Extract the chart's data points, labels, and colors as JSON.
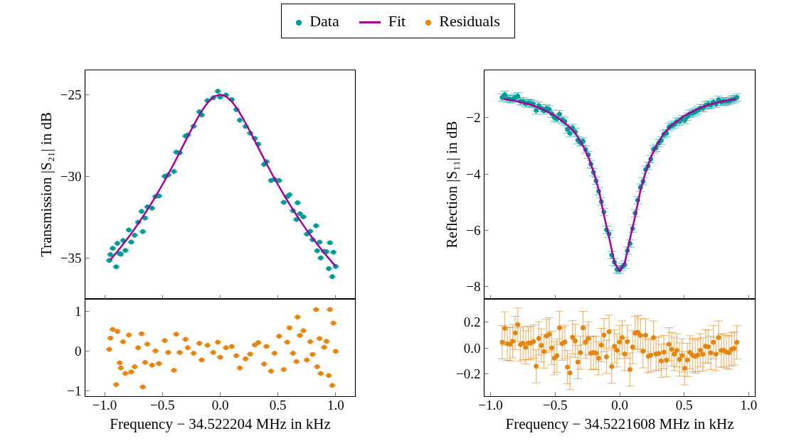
{
  "chart_data": [
    {
      "type": "scatter",
      "legend": "top",
      "ylabel": "Transmission |S₂₁| in dB",
      "tick_labels": "y",
      "xlim": [
        -1.17,
        1.17
      ],
      "ylim": [
        -37.5,
        -23.5
      ],
      "xticks": [
        -1,
        -0.5,
        0,
        0.5,
        1
      ],
      "yticks": [
        {
          "value": -35,
          "label": "−35"
        },
        {
          "value": -30,
          "label": "−30"
        },
        {
          "value": -25,
          "label": "−25"
        }
      ],
      "series": [
        {
          "name": "Data",
          "marker": "circle",
          "color": "#009b95",
          "x": [
            -0.96,
            -0.95,
            -0.93,
            -0.9,
            -0.89,
            -0.87,
            -0.86,
            -0.84,
            -0.82,
            -0.79,
            -0.77,
            -0.74,
            -0.71,
            -0.68,
            -0.67,
            -0.65,
            -0.63,
            -0.59,
            -0.56,
            -0.53,
            -0.48,
            -0.45,
            -0.4,
            -0.38,
            -0.35,
            -0.3,
            -0.28,
            -0.23,
            -0.18,
            -0.16,
            -0.11,
            -0.06,
            -0.02,
            0.0,
            0.05,
            0.1,
            0.14,
            0.17,
            0.22,
            0.26,
            0.3,
            0.33,
            0.38,
            0.4,
            0.44,
            0.47,
            0.51,
            0.55,
            0.58,
            0.6,
            0.63,
            0.66,
            0.67,
            0.69,
            0.72,
            0.75,
            0.78,
            0.8,
            0.83,
            0.84,
            0.86,
            0.87,
            0.9,
            0.92,
            0.94,
            0.95,
            0.97,
            0.98,
            1.0
          ],
          "values": [
            -35.13,
            -34.77,
            -34.39,
            -35.52,
            -34.09,
            -34.71,
            -34.75,
            -33.91,
            -34.52,
            -33.27,
            -34.01,
            -33.59,
            -32.8,
            -32.14,
            -33.37,
            -32.54,
            -31.86,
            -31.94,
            -31.23,
            -31.19,
            -29.99,
            -29.91,
            -29.7,
            -28.52,
            -28.56,
            -27.54,
            -27.47,
            -26.94,
            -26.06,
            -26.25,
            -25.37,
            -25.2,
            -24.8,
            -25.16,
            -25.03,
            -25.31,
            -25.92,
            -26.57,
            -26.95,
            -27.36,
            -27.68,
            -28.03,
            -29.27,
            -29.1,
            -30.25,
            -30.18,
            -30.25,
            -31.58,
            -31.24,
            -31.12,
            -32.09,
            -32.63,
            -31.61,
            -32.28,
            -32.47,
            -33.52,
            -33.35,
            -33.86,
            -33.01,
            -34.54,
            -34.01,
            -34.98,
            -34.58,
            -34.6,
            -35.63,
            -34.05,
            -36.12,
            -34.63,
            -35.5
          ],
          "xerrors": [
            0.025,
            0.025,
            0.025,
            0.025,
            0.025,
            0.025,
            0.025,
            0.025,
            0.025,
            0.025,
            0.025,
            0.025,
            0.025,
            0.025,
            0.025,
            0.025,
            0.025,
            0.025,
            0.025,
            0.025,
            0.025,
            0.025,
            0.025,
            0.025,
            0.025,
            0.025,
            0.025,
            0.025,
            0.025,
            0.025,
            0.025,
            0.025,
            0.025,
            0.025,
            0.025,
            0.025,
            0.025,
            0.025,
            0.025,
            0.025,
            0.025,
            0.025,
            0.025,
            0.025,
            0.025,
            0.025,
            0.025,
            0.025,
            0.025,
            0.025,
            0.025,
            0.025,
            0.025,
            0.025,
            0.025,
            0.025,
            0.025,
            0.025,
            0.025,
            0.025,
            0.025,
            0.025,
            0.025,
            0.025,
            0.025,
            0.025,
            0.025,
            0.025,
            0.025
          ]
        },
        {
          "name": "Fit",
          "type": "line",
          "color": "#a6009f",
          "x": [
            -0.95,
            -0.9,
            -0.85,
            -0.8,
            -0.75,
            -0.7,
            -0.65,
            -0.6,
            -0.55,
            -0.5,
            -0.45,
            -0.4,
            -0.35,
            -0.3,
            -0.25,
            -0.2,
            -0.15,
            -0.1,
            -0.05,
            0,
            0.05,
            0.1,
            0.15,
            0.2,
            0.25,
            0.3,
            0.35,
            0.4,
            0.45,
            0.5,
            0.55,
            0.6,
            0.65,
            0.7,
            0.75,
            0.8,
            0.85,
            0.9,
            0.95,
            1.0
          ],
          "values": [
            -35.09,
            -34.67,
            -34.23,
            -33.77,
            -33.29,
            -32.78,
            -32.25,
            -31.7,
            -31.11,
            -30.5,
            -29.87,
            -29.21,
            -28.52,
            -27.83,
            -27.14,
            -26.49,
            -25.9,
            -25.42,
            -25.11,
            -25.0,
            -25.11,
            -25.42,
            -25.9,
            -26.49,
            -27.14,
            -27.83,
            -28.52,
            -29.21,
            -29.87,
            -30.5,
            -31.11,
            -31.7,
            -32.25,
            -32.78,
            -33.29,
            -33.77,
            -34.23,
            -34.67,
            -35.09,
            -35.49
          ]
        }
      ]
    },
    {
      "type": "scatter",
      "legend": "top",
      "xlabel": "Frequency − 34.522204 MHz in kHz",
      "xlim": [
        -1.17,
        1.17
      ],
      "ylim": [
        -1.15,
        1.3
      ],
      "xticks": [
        {
          "value": -1,
          "label": "−1.0"
        },
        {
          "value": -0.5,
          "label": "−0.5"
        },
        {
          "value": 0,
          "label": "0.0"
        },
        {
          "value": 0.5,
          "label": "0.5"
        },
        {
          "value": 1,
          "label": "1.0"
        }
      ],
      "yticks": [
        {
          "value": -1,
          "label": "−1"
        },
        0,
        1
      ],
      "series": [
        {
          "name": "Residuals",
          "marker": "circle",
          "color": "#e6850e",
          "x": [
            -0.96,
            -0.95,
            -0.93,
            -0.9,
            -0.89,
            -0.87,
            -0.86,
            -0.84,
            -0.82,
            -0.79,
            -0.77,
            -0.74,
            -0.71,
            -0.68,
            -0.67,
            -0.65,
            -0.63,
            -0.59,
            -0.56,
            -0.53,
            -0.48,
            -0.45,
            -0.4,
            -0.38,
            -0.35,
            -0.3,
            -0.28,
            -0.23,
            -0.18,
            -0.16,
            -0.11,
            -0.06,
            -0.02,
            0.0,
            0.05,
            0.1,
            0.14,
            0.17,
            0.22,
            0.26,
            0.3,
            0.33,
            0.38,
            0.4,
            0.44,
            0.47,
            0.51,
            0.55,
            0.58,
            0.6,
            0.63,
            0.66,
            0.67,
            0.69,
            0.72,
            0.75,
            0.78,
            0.8,
            0.83,
            0.84,
            0.86,
            0.87,
            0.9,
            0.92,
            0.94,
            0.95,
            0.97,
            0.98,
            1.0
          ],
          "values": [
            0.04,
            0.32,
            0.54,
            -0.85,
            0.49,
            -0.3,
            -0.43,
            0.23,
            -0.57,
            0.4,
            -0.53,
            -0.4,
            0.08,
            0.43,
            -0.91,
            -0.29,
            0.17,
            -0.36,
            0.0,
            -0.32,
            0.26,
            -0.04,
            -0.49,
            0.42,
            -0.04,
            0.29,
            0.08,
            -0.06,
            0.19,
            -0.23,
            0.14,
            -0.04,
            0.22,
            -0.16,
            0.08,
            0.11,
            -0.12,
            -0.43,
            -0.2,
            -0.08,
            0.15,
            0.21,
            -0.33,
            0.11,
            -0.51,
            -0.06,
            0.37,
            -0.47,
            0.22,
            0.58,
            -0.06,
            -0.27,
            0.85,
            0.39,
            0.51,
            -0.23,
            0.23,
            -0.09,
            1.04,
            -0.4,
            0.31,
            -0.57,
            0.09,
            0.24,
            -0.62,
            1.04,
            -0.87,
            0.7,
            -0.01
          ],
          "xerrors": [
            0.025,
            0.025,
            0.025,
            0.025,
            0.025,
            0.025,
            0.025,
            0.025,
            0.025,
            0.025,
            0.025,
            0.025,
            0.025,
            0.025,
            0.025,
            0.025,
            0.025,
            0.025,
            0.025,
            0.025,
            0.025,
            0.025,
            0.025,
            0.025,
            0.025,
            0.025,
            0.025,
            0.025,
            0.025,
            0.025,
            0.025,
            0.025,
            0.025,
            0.025,
            0.025,
            0.025,
            0.025,
            0.025,
            0.025,
            0.025,
            0.025,
            0.025,
            0.025,
            0.025,
            0.025,
            0.025,
            0.025,
            0.025,
            0.025,
            0.025,
            0.025,
            0.025,
            0.025,
            0.025,
            0.025,
            0.025,
            0.025,
            0.025,
            0.025,
            0.025,
            0.025,
            0.025,
            0.025,
            0.025,
            0.025,
            0.025,
            0.025,
            0.025,
            0.025
          ]
        }
      ]
    },
    {
      "type": "scatter",
      "ylabel": "Reflection |S₁₁| in dB",
      "tick_labels": "y",
      "xlim": [
        -1.05,
        1.05
      ],
      "ylim": [
        -8.45,
        -0.3
      ],
      "xticks": [
        -1,
        -0.5,
        0,
        0.5,
        1
      ],
      "yticks": [
        {
          "value": -8,
          "label": "−8"
        },
        {
          "value": -6,
          "label": "−6"
        },
        {
          "value": -4,
          "label": "−4"
        },
        {
          "value": -2,
          "label": "−2"
        }
      ],
      "series": [
        {
          "marker": "circle",
          "color": "#009b95",
          "x": [
            -0.91,
            -0.89,
            -0.87,
            -0.849,
            -0.829,
            -0.809,
            -0.789,
            -0.769,
            -0.748,
            -0.728,
            -0.708,
            -0.688,
            -0.668,
            -0.647,
            -0.627,
            -0.607,
            -0.587,
            -0.567,
            -0.546,
            -0.526,
            -0.506,
            -0.486,
            -0.466,
            -0.445,
            -0.425,
            -0.405,
            -0.385,
            -0.365,
            -0.344,
            -0.324,
            -0.304,
            -0.284,
            -0.264,
            -0.243,
            -0.223,
            -0.203,
            -0.183,
            -0.163,
            -0.142,
            -0.122,
            -0.102,
            -0.082,
            -0.062,
            -0.041,
            -0.021,
            -0.001,
            0.019,
            0.039,
            0.06,
            0.08,
            0.1,
            0.12,
            0.14,
            0.161,
            0.181,
            0.201,
            0.221,
            0.241,
            0.262,
            0.282,
            0.302,
            0.322,
            0.342,
            0.363,
            0.383,
            0.403,
            0.423,
            0.443,
            0.464,
            0.484,
            0.504,
            0.524,
            0.544,
            0.565,
            0.585,
            0.605,
            0.625,
            0.645,
            0.666,
            0.686,
            0.706,
            0.726,
            0.746,
            0.767,
            0.787,
            0.807,
            0.827,
            0.847,
            0.868,
            0.888,
            0.908
          ],
          "values": [
            -1.28,
            -1.18,
            -1.32,
            -1.34,
            -1.34,
            -1.28,
            -1.24,
            -1.41,
            -1.42,
            -1.49,
            -1.47,
            -1.49,
            -1.52,
            -1.74,
            -1.57,
            -1.66,
            -1.75,
            -1.67,
            -1.7,
            -1.86,
            -1.99,
            -2.03,
            -1.87,
            -2.08,
            -2.13,
            -2.41,
            -2.55,
            -2.36,
            -2.5,
            -2.8,
            -2.88,
            -2.84,
            -3.13,
            -3.32,
            -3.65,
            -3.94,
            -4.24,
            -4.61,
            -4.98,
            -5.35,
            -5.98,
            -6.13,
            -6.88,
            -7.13,
            -7.39,
            -7.4,
            -7.3,
            -7.22,
            -6.72,
            -6.47,
            -5.94,
            -5.39,
            -4.93,
            -4.48,
            -4.26,
            -3.84,
            -3.71,
            -3.47,
            -3.12,
            -3.07,
            -2.9,
            -2.81,
            -2.59,
            -2.55,
            -2.33,
            -2.28,
            -2.24,
            -2.14,
            -2.13,
            -2.04,
            -2.08,
            -1.96,
            -1.86,
            -1.83,
            -1.79,
            -1.74,
            -1.66,
            -1.66,
            -1.56,
            -1.53,
            -1.55,
            -1.45,
            -1.51,
            -1.36,
            -1.44,
            -1.42,
            -1.42,
            -1.41,
            -1.36,
            -1.34,
            -1.28
          ],
          "errors": [
            0.13,
            0.13,
            0.13,
            0.13,
            0.13,
            0.13,
            0.13,
            0.13,
            0.13,
            0.13,
            0.13,
            0.13,
            0.13,
            0.13,
            0.13,
            0.13,
            0.13,
            0.13,
            0.13,
            0.13,
            0.13,
            0.13,
            0.13,
            0.13,
            0.13,
            0.13,
            0.13,
            0.13,
            0.13,
            0.13,
            0.13,
            0.13,
            0.13,
            0.13,
            0.13,
            0.13,
            0.13,
            0.13,
            0.13,
            0.13,
            0.13,
            0.13,
            0.13,
            0.13,
            0.13,
            0.13,
            0.13,
            0.13,
            0.13,
            0.13,
            0.13,
            0.13,
            0.13,
            0.13,
            0.13,
            0.13,
            0.13,
            0.13,
            0.13,
            0.13,
            0.13,
            0.13,
            0.13,
            0.13,
            0.13,
            0.13,
            0.13,
            0.13,
            0.13,
            0.13,
            0.13,
            0.13,
            0.13,
            0.13,
            0.13,
            0.13,
            0.13,
            0.13,
            0.13,
            0.13,
            0.13,
            0.13,
            0.13,
            0.13,
            0.13,
            0.13,
            0.13,
            0.13,
            0.13,
            0.13,
            0.13
          ]
        },
        {
          "type": "line",
          "color": "#a6009f",
          "x": [
            -0.9,
            -0.8,
            -0.7,
            -0.6,
            -0.5,
            -0.4,
            -0.34,
            -0.28,
            -0.24,
            -0.2,
            -0.16,
            -0.12,
            -0.08,
            -0.04,
            0,
            0.04,
            0.08,
            0.12,
            0.16,
            0.2,
            0.24,
            0.28,
            0.34,
            0.4,
            0.5,
            0.6,
            0.7,
            0.8,
            0.9
          ],
          "values": [
            -1.33,
            -1.41,
            -1.52,
            -1.69,
            -1.93,
            -2.28,
            -2.57,
            -3.03,
            -3.42,
            -3.95,
            -4.6,
            -5.5,
            -6.3,
            -7.15,
            -7.45,
            -7.15,
            -6.3,
            -5.5,
            -4.6,
            -3.95,
            -3.42,
            -3.03,
            -2.57,
            -2.28,
            -1.93,
            -1.69,
            -1.52,
            -1.41,
            -1.33
          ]
        }
      ]
    },
    {
      "type": "scatter",
      "xlabel": "Frequency − 34.5221608 MHz in kHz",
      "xlim": [
        -1.05,
        1.05
      ],
      "ylim": [
        -0.38,
        0.38
      ],
      "xticks": [
        {
          "value": -1,
          "label": "−1.0"
        },
        {
          "value": -0.5,
          "label": "−0.5"
        },
        {
          "value": 0,
          "label": "0.0"
        },
        {
          "value": 0.5,
          "label": "0.5"
        },
        {
          "value": 1,
          "label": "1.0"
        }
      ],
      "yticks": [
        {
          "value": -0.2,
          "label": "−0.2"
        },
        {
          "value": 0,
          "label": "0.0"
        },
        0.2
      ],
      "series": [
        {
          "marker": "circle",
          "color": "#e6850e",
          "x": [
            -0.91,
            -0.89,
            -0.87,
            -0.849,
            -0.829,
            -0.809,
            -0.789,
            -0.769,
            -0.748,
            -0.728,
            -0.708,
            -0.688,
            -0.668,
            -0.647,
            -0.627,
            -0.607,
            -0.587,
            -0.567,
            -0.546,
            -0.526,
            -0.506,
            -0.486,
            -0.466,
            -0.445,
            -0.425,
            -0.405,
            -0.385,
            -0.365,
            -0.344,
            -0.324,
            -0.304,
            -0.284,
            -0.264,
            -0.243,
            -0.223,
            -0.203,
            -0.183,
            -0.163,
            -0.142,
            -0.122,
            -0.102,
            -0.082,
            -0.062,
            -0.041,
            -0.021,
            -0.001,
            0.019,
            0.039,
            0.06,
            0.08,
            0.1,
            0.12,
            0.14,
            0.161,
            0.181,
            0.201,
            0.221,
            0.241,
            0.262,
            0.282,
            0.302,
            0.322,
            0.342,
            0.363,
            0.383,
            0.403,
            0.423,
            0.443,
            0.464,
            0.484,
            0.504,
            0.524,
            0.544,
            0.565,
            0.585,
            0.605,
            0.625,
            0.645,
            0.666,
            0.686,
            0.706,
            0.726,
            0.746,
            0.767,
            0.787,
            0.807,
            0.827,
            0.847,
            0.868,
            0.888,
            0.908
          ],
          "values": [
            0.044,
            0.152,
            0.033,
            0.028,
            0.052,
            0.117,
            0.181,
            0.026,
            0.037,
            0.004,
            0.037,
            0.037,
            0.05,
            -0.143,
            0.074,
            0.019,
            -0.028,
            0.093,
            0.106,
            0.0,
            -0.08,
            -0.061,
            0.157,
            0.033,
            0.046,
            -0.15,
            -0.196,
            0.083,
            0.054,
            -0.111,
            -0.037,
            0.156,
            0.046,
            0.074,
            -0.041,
            -0.037,
            -0.041,
            -0.081,
            0.022,
            0.1,
            -0.07,
            0.126,
            -0.146,
            0.013,
            -0.019,
            0.046,
            0.081,
            -0.048,
            0.048,
            -0.169,
            0.007,
            0.115,
            0.122,
            0.098,
            -0.026,
            0.098,
            -0.065,
            -0.057,
            0.081,
            -0.048,
            -0.044,
            -0.102,
            -0.033,
            -0.096,
            0.028,
            -0.011,
            -0.048,
            -0.019,
            -0.091,
            -0.059,
            -0.159,
            -0.094,
            -0.035,
            -0.057,
            -0.067,
            -0.056,
            -0.019,
            -0.05,
            0.013,
            0.009,
            -0.039,
            0.044,
            -0.048,
            0.081,
            -0.02,
            -0.02,
            -0.033,
            -0.037,
            -0.011,
            -0.004,
            0.043
          ],
          "errors": [
            0.13,
            0.13,
            0.13,
            0.13,
            0.13,
            0.13,
            0.13,
            0.13,
            0.13,
            0.13,
            0.13,
            0.13,
            0.13,
            0.13,
            0.13,
            0.13,
            0.13,
            0.13,
            0.13,
            0.13,
            0.13,
            0.13,
            0.13,
            0.13,
            0.13,
            0.13,
            0.13,
            0.13,
            0.13,
            0.13,
            0.13,
            0.13,
            0.13,
            0.13,
            0.13,
            0.13,
            0.13,
            0.13,
            0.13,
            0.13,
            0.13,
            0.13,
            0.13,
            0.13,
            0.13,
            0.13,
            0.13,
            0.13,
            0.13,
            0.13,
            0.13,
            0.13,
            0.13,
            0.13,
            0.13,
            0.13,
            0.13,
            0.13,
            0.13,
            0.13,
            0.13,
            0.13,
            0.13,
            0.13,
            0.13,
            0.13,
            0.13,
            0.13,
            0.13,
            0.13,
            0.13,
            0.13,
            0.13,
            0.13,
            0.13,
            0.13,
            0.13,
            0.13,
            0.13,
            0.13,
            0.13,
            0.13,
            0.13,
            0.13,
            0.13,
            0.13,
            0.13,
            0.13,
            0.13,
            0.13,
            0.13
          ]
        }
      ]
    }
  ]
}
